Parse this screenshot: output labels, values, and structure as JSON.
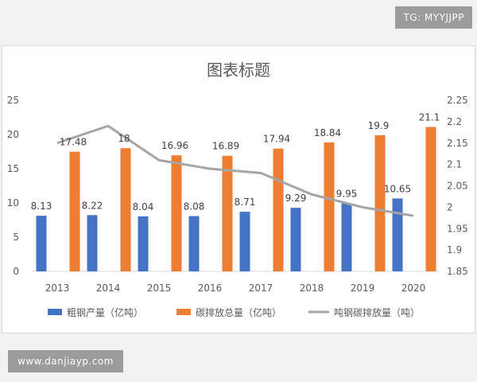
{
  "watermarks": {
    "top_right": "TG: MYYJJPP",
    "bottom_left": "www.danjiayp.com"
  },
  "colors": {
    "blue": "#4472c4",
    "orange": "#ed7d31",
    "gray": "#a5a5a5"
  },
  "chart_data": {
    "type": "bar",
    "title": "图表标题",
    "categories": [
      "2013",
      "2014",
      "2015",
      "2016",
      "2017",
      "2018",
      "2019",
      "2020"
    ],
    "series": [
      {
        "name": "粗钢产量（亿吨）",
        "type": "bar",
        "axis": "left",
        "values": [
          8.13,
          8.22,
          8.04,
          8.08,
          8.71,
          9.29,
          9.95,
          10.65
        ],
        "labels": [
          "8.13",
          "8.22",
          "8.04",
          "8.08",
          "8.71",
          "9.29",
          "9.95",
          "10.65"
        ]
      },
      {
        "name": "碳排放总量（亿吨）",
        "type": "bar",
        "axis": "left",
        "values": [
          17.48,
          18,
          16.96,
          16.89,
          17.94,
          18.84,
          19.9,
          21.1
        ],
        "labels": [
          "17.48",
          "18",
          "16.96",
          "16.89",
          "17.94",
          "18.84",
          "19.9",
          "21.1"
        ]
      },
      {
        "name": "吨钢碳排放量（吨）",
        "type": "line",
        "axis": "right",
        "values": [
          2.15,
          2.19,
          2.11,
          2.09,
          2.08,
          2.03,
          2.0,
          1.98
        ]
      }
    ],
    "y_left": {
      "lim": [
        0,
        25
      ],
      "ticks": [
        "0",
        "5",
        "10",
        "15",
        "20",
        "25"
      ]
    },
    "y_right": {
      "lim": [
        1.85,
        2.25
      ],
      "ticks": [
        "1.85",
        "1.9",
        "1.95",
        "2",
        "2.05",
        "2.1",
        "2.15",
        "2.2",
        "2.25"
      ]
    },
    "legend_position": "bottom",
    "grid": false
  }
}
